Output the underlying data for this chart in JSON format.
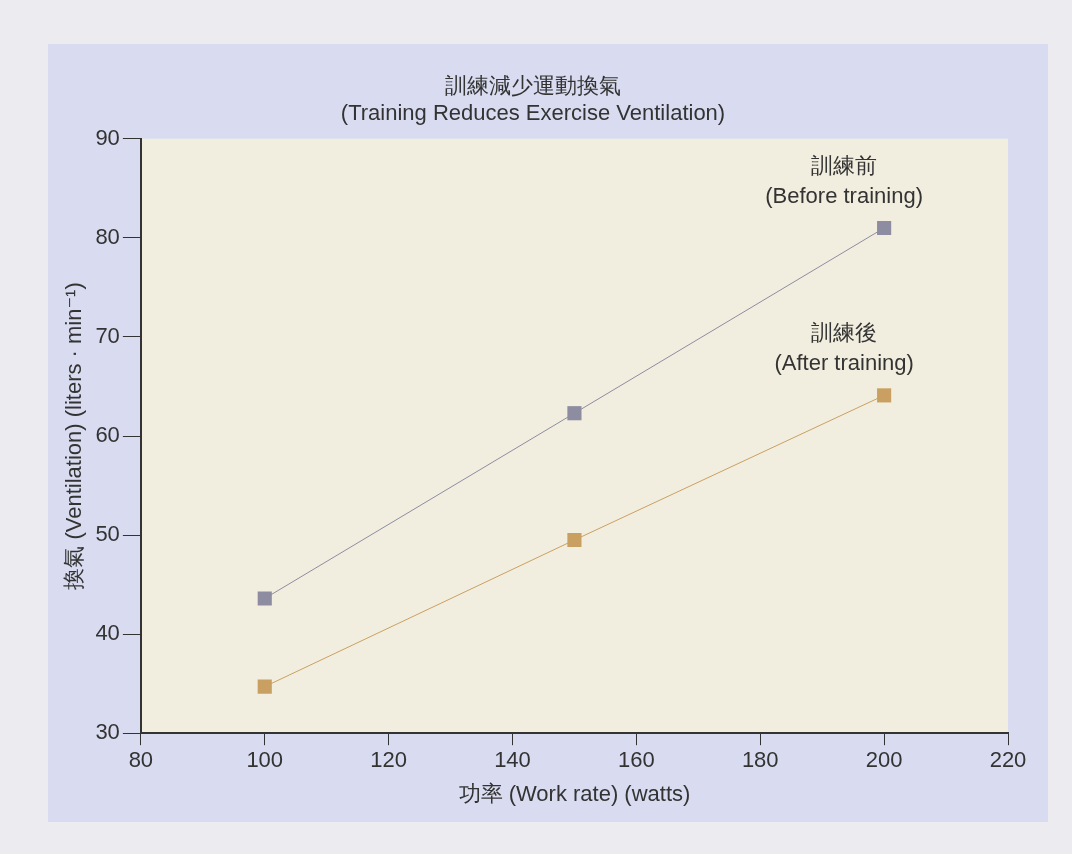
{
  "chart_data": {
    "type": "line",
    "title": "訓練減少運動換氣\n(Training Reduces Exercise Ventilation)",
    "xlabel": "功率 (Work rate) (watts)",
    "ylabel": "換氣 (Ventilation) (liters · min⁻¹)",
    "x": [
      100,
      150,
      200
    ],
    "series": [
      {
        "name": "訓練前\n(Before training)",
        "color": "#8e8ca0",
        "values": [
          43.6,
          62.3,
          81
        ]
      },
      {
        "name": "訓練後\n(After training)",
        "color": "#c9a062",
        "values": [
          34.7,
          49.5,
          64.1
        ]
      }
    ],
    "xlim": [
      80,
      220
    ],
    "xticks": [
      80,
      100,
      120,
      140,
      160,
      180,
      200,
      220
    ],
    "ylim": [
      30,
      90
    ],
    "yticks": [
      30,
      40,
      50,
      60,
      70,
      80,
      90
    ],
    "grid": false,
    "legend": false,
    "marker": "square",
    "line_style": "solid"
  }
}
